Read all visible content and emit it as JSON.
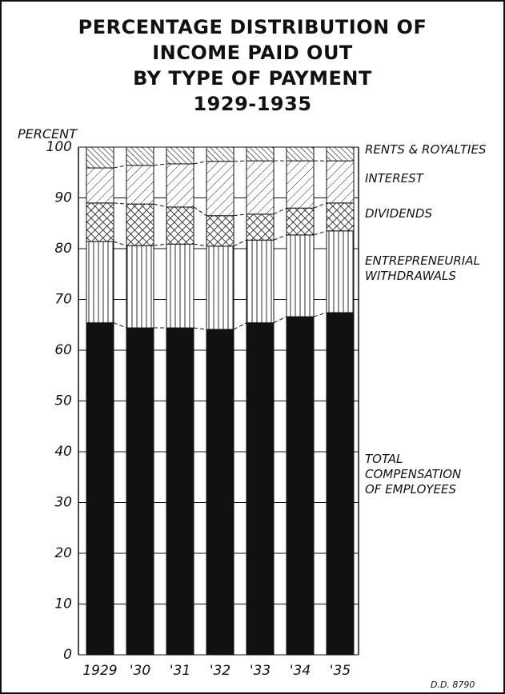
{
  "chart_data": {
    "type": "stacked_bar",
    "title": "PERCENTAGE DISTRIBUTION OF\nINCOME PAID OUT\nBY TYPE OF PAYMENT\n1929-1935",
    "y_label": "PERCENT",
    "note": "D.D. 8790",
    "categories": [
      "1929",
      "'30",
      "'31",
      "'32",
      "'33",
      "'34",
      "'35"
    ],
    "series": [
      {
        "name": "TOTAL\nCOMPENSATION\nOF EMPLOYEES",
        "color": "#111111",
        "pattern": "solid",
        "values": [
          65.4,
          64.4,
          64.4,
          64.1,
          65.4,
          66.6,
          67.4
        ]
      },
      {
        "name": "ENTREPRENEURIAL\nWITHDRAWALS",
        "color": "#111111",
        "pattern": "vertical",
        "values": [
          16.0,
          16.2,
          16.5,
          16.4,
          16.3,
          16.1,
          16.1
        ]
      },
      {
        "name": "DIVIDENDS",
        "color": "#111111",
        "pattern": "crosshatch",
        "values": [
          7.6,
          8.2,
          7.3,
          6.0,
          5.1,
          5.3,
          5.5
        ]
      },
      {
        "name": "INTEREST",
        "color": "#111111",
        "pattern": "diagonal",
        "values": [
          6.9,
          7.6,
          8.5,
          10.7,
          10.5,
          9.3,
          8.3
        ]
      },
      {
        "name": "RENTS & ROYALTIES",
        "color": "#111111",
        "pattern": "diagonal-dense",
        "values": [
          4.1,
          3.6,
          3.3,
          2.8,
          2.7,
          2.7,
          2.7
        ]
      }
    ],
    "ylim": [
      0,
      100
    ],
    "yticks": [
      0,
      10,
      20,
      30,
      40,
      50,
      60,
      70,
      80,
      90,
      100
    ],
    "grid": true
  }
}
